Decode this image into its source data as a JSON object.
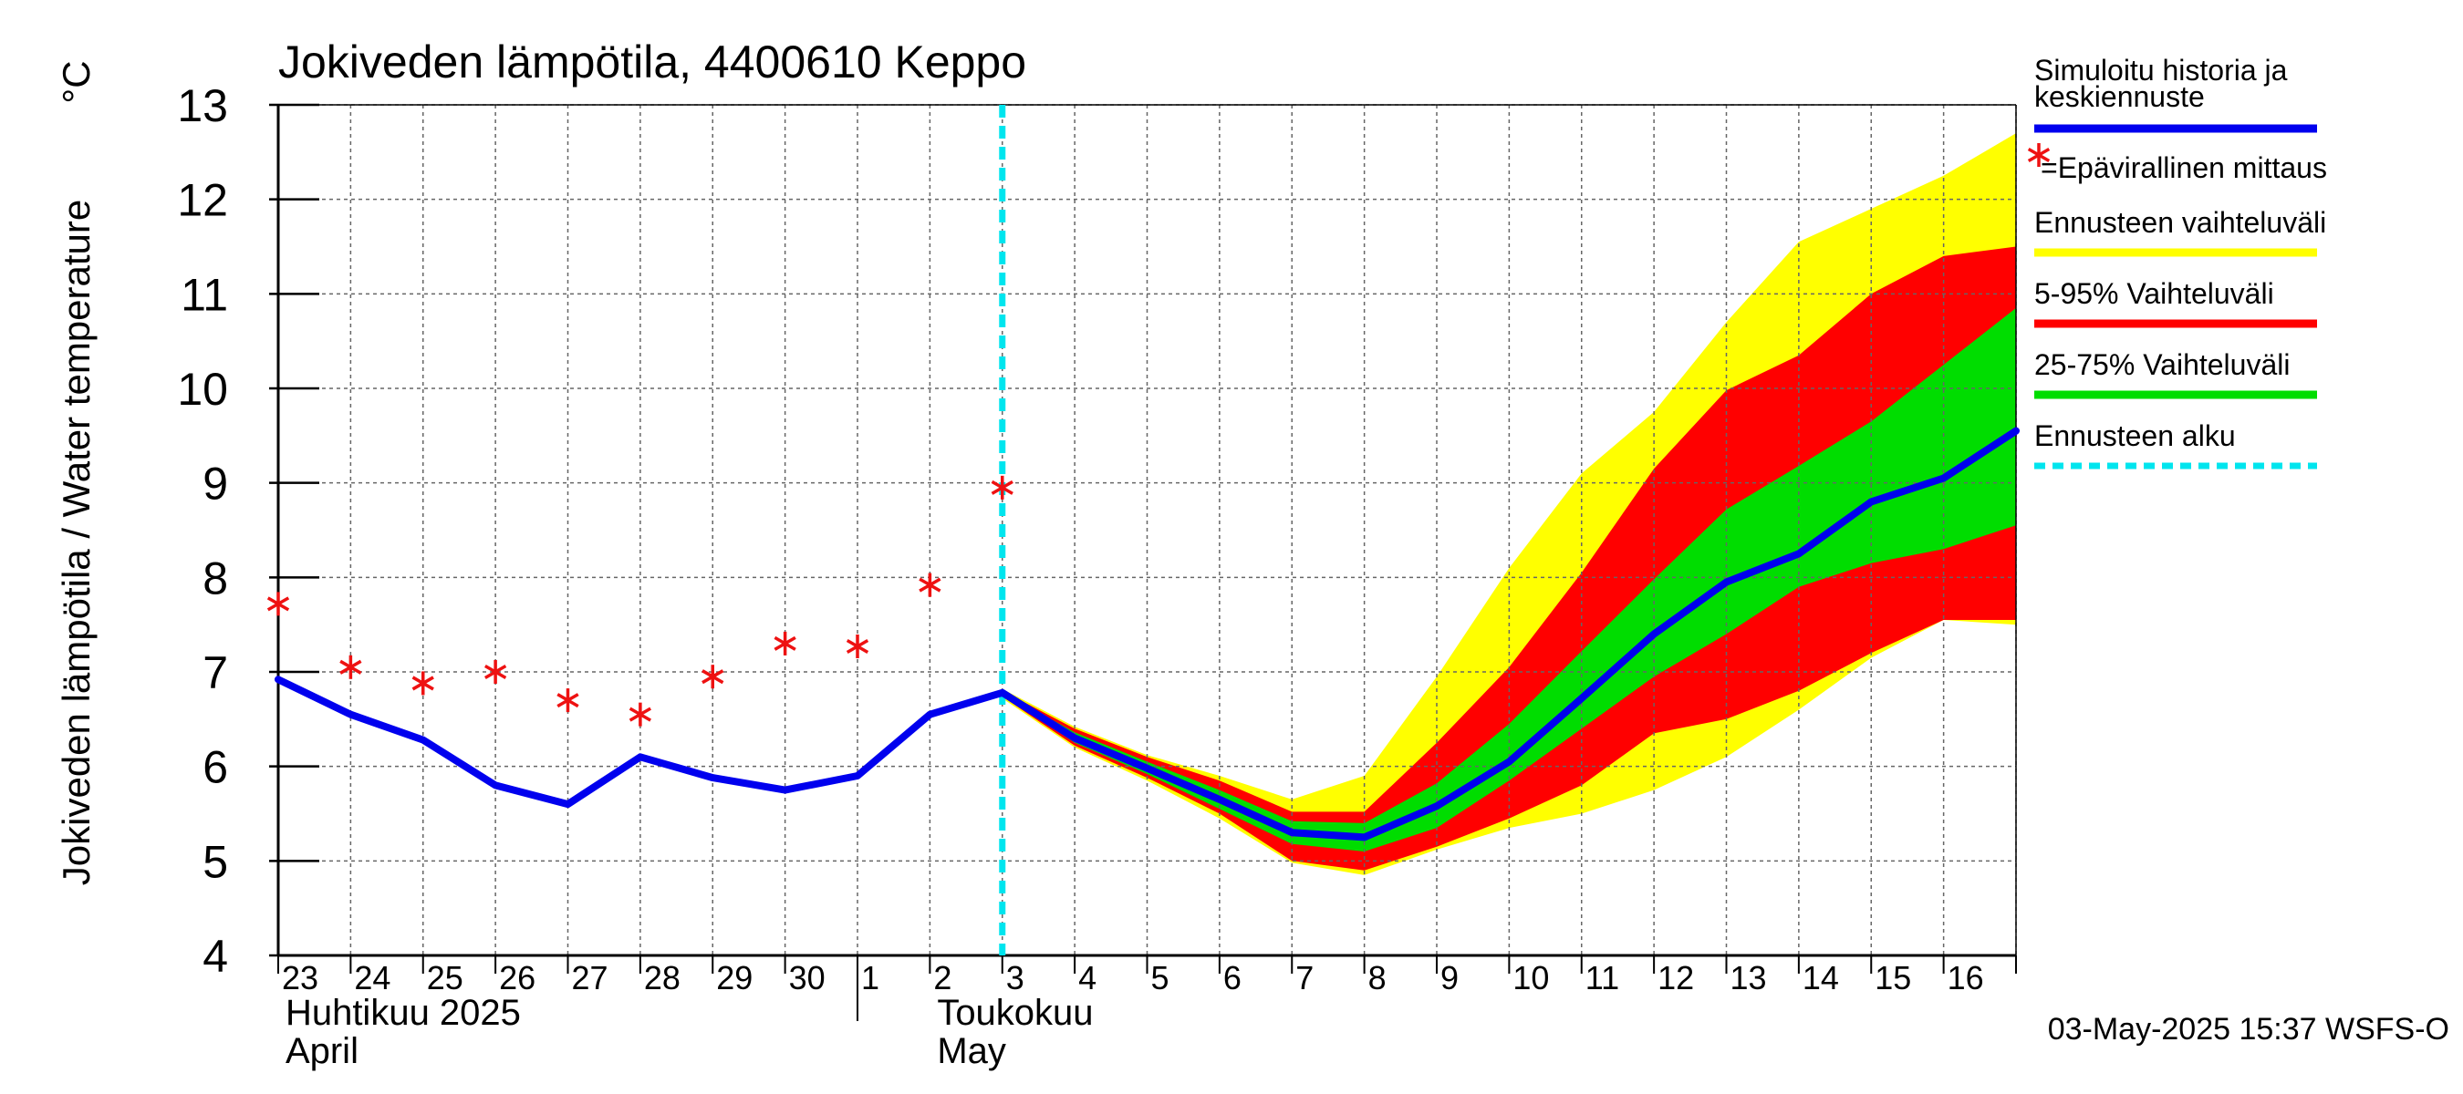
{
  "chart_data": {
    "type": "line",
    "title": "Jokiveden lämpötila, 4400610 Keppo",
    "ylabel": "Jokiveden lämpötila / Water temperature",
    "yunit": "°C",
    "ylim": [
      4,
      13
    ],
    "yticks": [
      4,
      5,
      6,
      7,
      8,
      9,
      10,
      11,
      12,
      13
    ],
    "xlim": [
      0,
      24
    ],
    "day_labels": [
      "23",
      "24",
      "25",
      "26",
      "27",
      "28",
      "29",
      "30",
      "1",
      "2",
      "3",
      "4",
      "5",
      "6",
      "7",
      "8",
      "9",
      "10",
      "11",
      "12",
      "13",
      "14",
      "15",
      "16"
    ],
    "month_labels": [
      {
        "x": 0.1,
        "line1": "Huhtikuu  2025",
        "line2": "April"
      },
      {
        "x": 9.1,
        "line1": "Toukokuu",
        "line2": "May"
      }
    ],
    "month_divider_x": 8,
    "forecast_start_x": 10,
    "simulated": {
      "x": [
        0,
        1,
        2,
        3,
        4,
        5,
        6,
        7,
        8,
        9,
        10,
        11,
        12,
        13,
        14,
        15,
        16,
        17,
        18,
        19,
        20,
        21,
        22,
        23,
        24
      ],
      "y": [
        6.92,
        6.55,
        6.28,
        5.8,
        5.6,
        6.1,
        5.88,
        5.75,
        5.9,
        6.55,
        6.78,
        6.3,
        5.98,
        5.65,
        5.3,
        5.25,
        5.58,
        6.05,
        6.72,
        7.4,
        7.95,
        8.25,
        8.8,
        9.05,
        9.55
      ]
    },
    "observations": {
      "x": [
        0,
        1,
        2,
        3,
        4,
        5,
        6,
        7,
        8,
        9,
        10
      ],
      "y": [
        7.72,
        7.05,
        6.88,
        7.0,
        6.7,
        6.55,
        6.95,
        7.3,
        7.27,
        7.92,
        8.95
      ]
    },
    "bands": {
      "x": [
        10,
        11,
        12,
        13,
        14,
        15,
        16,
        17,
        18,
        19,
        20,
        21,
        22,
        23,
        24
      ],
      "outer_low": [
        6.72,
        6.2,
        5.85,
        5.45,
        4.98,
        4.85,
        5.12,
        5.35,
        5.5,
        5.75,
        6.1,
        6.6,
        7.15,
        7.55,
        7.5
      ],
      "outer_high": [
        6.82,
        6.42,
        6.12,
        5.9,
        5.65,
        5.9,
        6.95,
        8.1,
        9.1,
        9.75,
        10.7,
        11.55,
        11.9,
        12.25,
        12.7
      ],
      "p5": [
        6.74,
        6.22,
        5.88,
        5.5,
        5.0,
        4.9,
        5.15,
        5.45,
        5.8,
        6.35,
        6.5,
        6.8,
        7.2,
        7.55,
        7.55
      ],
      "p95": [
        6.8,
        6.4,
        6.1,
        5.85,
        5.52,
        5.52,
        6.25,
        7.05,
        8.05,
        9.15,
        9.98,
        10.35,
        11.0,
        11.4,
        11.5
      ],
      "p25": [
        6.76,
        6.25,
        5.92,
        5.55,
        5.18,
        5.1,
        5.35,
        5.85,
        6.4,
        6.95,
        7.4,
        7.9,
        8.15,
        8.3,
        8.55
      ],
      "p75": [
        6.79,
        6.36,
        6.05,
        5.75,
        5.42,
        5.4,
        5.82,
        6.45,
        7.22,
        7.98,
        8.72,
        9.18,
        9.65,
        10.25,
        10.85
      ]
    },
    "legend": {
      "position": "right",
      "items": [
        {
          "label": "Simuloitu historia ja keskiennuste",
          "lines": [
            "Simuloitu historia ja",
            "keskiennuste"
          ],
          "color": "#0000ee",
          "kind": "line"
        },
        {
          "label": "=Epävirallinen mittaus",
          "lines": [
            "=Epävirallinen mittaus"
          ],
          "color": "#ee1111",
          "kind": "star"
        },
        {
          "label": "Ennusteen vaihteluväli",
          "lines": [
            "Ennusteen vaihteluväli"
          ],
          "color": "#ffff00",
          "kind": "line"
        },
        {
          "label": "5-95% Vaihteluväli",
          "lines": [
            "5-95% Vaihteluväli"
          ],
          "color": "#ff0000",
          "kind": "line"
        },
        {
          "label": "25-75% Vaihteluväli",
          "lines": [
            "25-75% Vaihteluväli"
          ],
          "color": "#00dd00",
          "kind": "line"
        },
        {
          "label": "Ennusteen alku",
          "lines": [
            "Ennusteen alku"
          ],
          "color": "#00e5ee",
          "kind": "dashed"
        }
      ]
    },
    "footer": "03-May-2025 15:37 WSFS-O"
  }
}
